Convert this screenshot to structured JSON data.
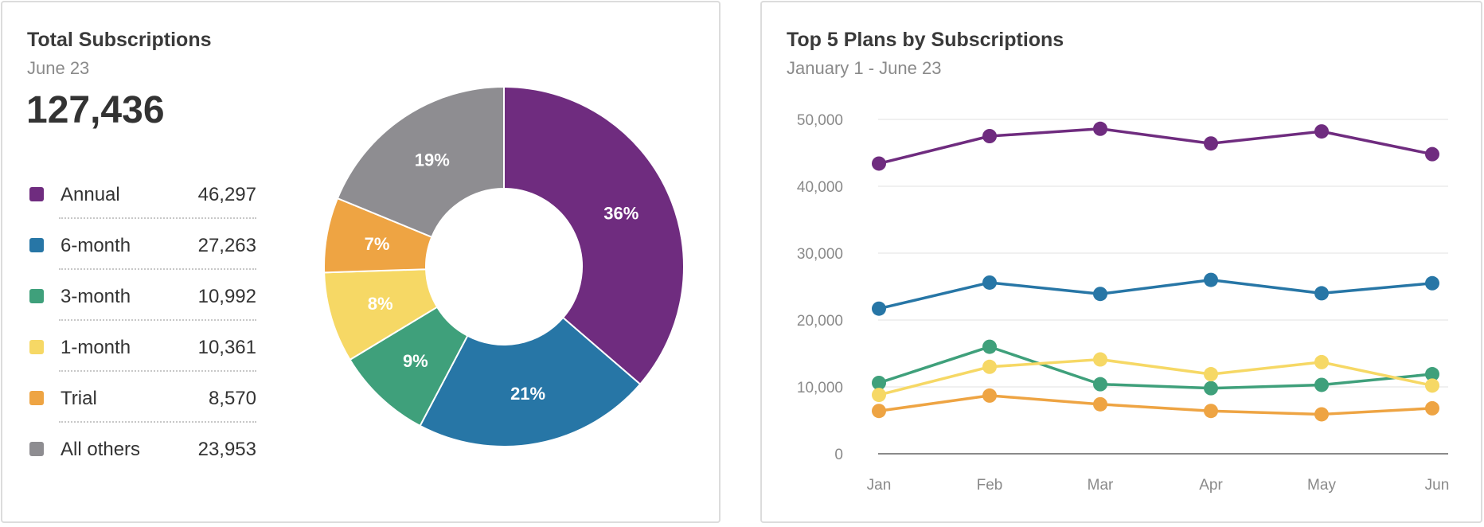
{
  "left_card": {
    "title": "Total Subscriptions",
    "subtitle": "June 23",
    "total": "127,436"
  },
  "right_card": {
    "title": "Top 5 Plans by Subscriptions",
    "subtitle": "January 1 - June 23"
  },
  "chart_data": [
    {
      "type": "pie",
      "title": "Total Subscriptions",
      "donut": true,
      "categories": [
        "Annual",
        "6-month",
        "3-month",
        "1-month",
        "Trial",
        "All others"
      ],
      "values": [
        46297,
        27263,
        10992,
        10361,
        8570,
        23953
      ],
      "value_labels": [
        "46,297",
        "27,263",
        "10,992",
        "10,361",
        "8,570",
        "23,953"
      ],
      "slice_labels": [
        "36%",
        "21%",
        "9%",
        "8%",
        "7%",
        "19%"
      ],
      "colors": [
        "#6f2c7f",
        "#2776a6",
        "#3fa07b",
        "#f6d865",
        "#eea443",
        "#8e8d91"
      ]
    },
    {
      "type": "line",
      "title": "Top 5 Plans by Subscriptions",
      "x": [
        "Jan",
        "Feb",
        "Mar",
        "Apr",
        "May",
        "Jun"
      ],
      "ylim": [
        0,
        50000
      ],
      "yticks": [
        0,
        10000,
        20000,
        30000,
        40000,
        50000
      ],
      "ytick_labels": [
        "0",
        "10,000",
        "20,000",
        "30,000",
        "40,000",
        "50,000"
      ],
      "grid": true,
      "series": [
        {
          "color": "#6f2c7f",
          "values": [
            43400,
            47500,
            48600,
            46400,
            48200,
            44800
          ]
        },
        {
          "color": "#2776a6",
          "values": [
            21700,
            25600,
            23900,
            26000,
            24000,
            25500
          ]
        },
        {
          "color": "#3fa07b",
          "values": [
            10600,
            16000,
            10400,
            9800,
            10300,
            11900
          ]
        },
        {
          "color": "#f6d865",
          "values": [
            8800,
            13000,
            14100,
            11900,
            13700,
            10200
          ]
        },
        {
          "color": "#eea443",
          "values": [
            6400,
            8700,
            7400,
            6400,
            5900,
            6800
          ]
        }
      ]
    }
  ]
}
